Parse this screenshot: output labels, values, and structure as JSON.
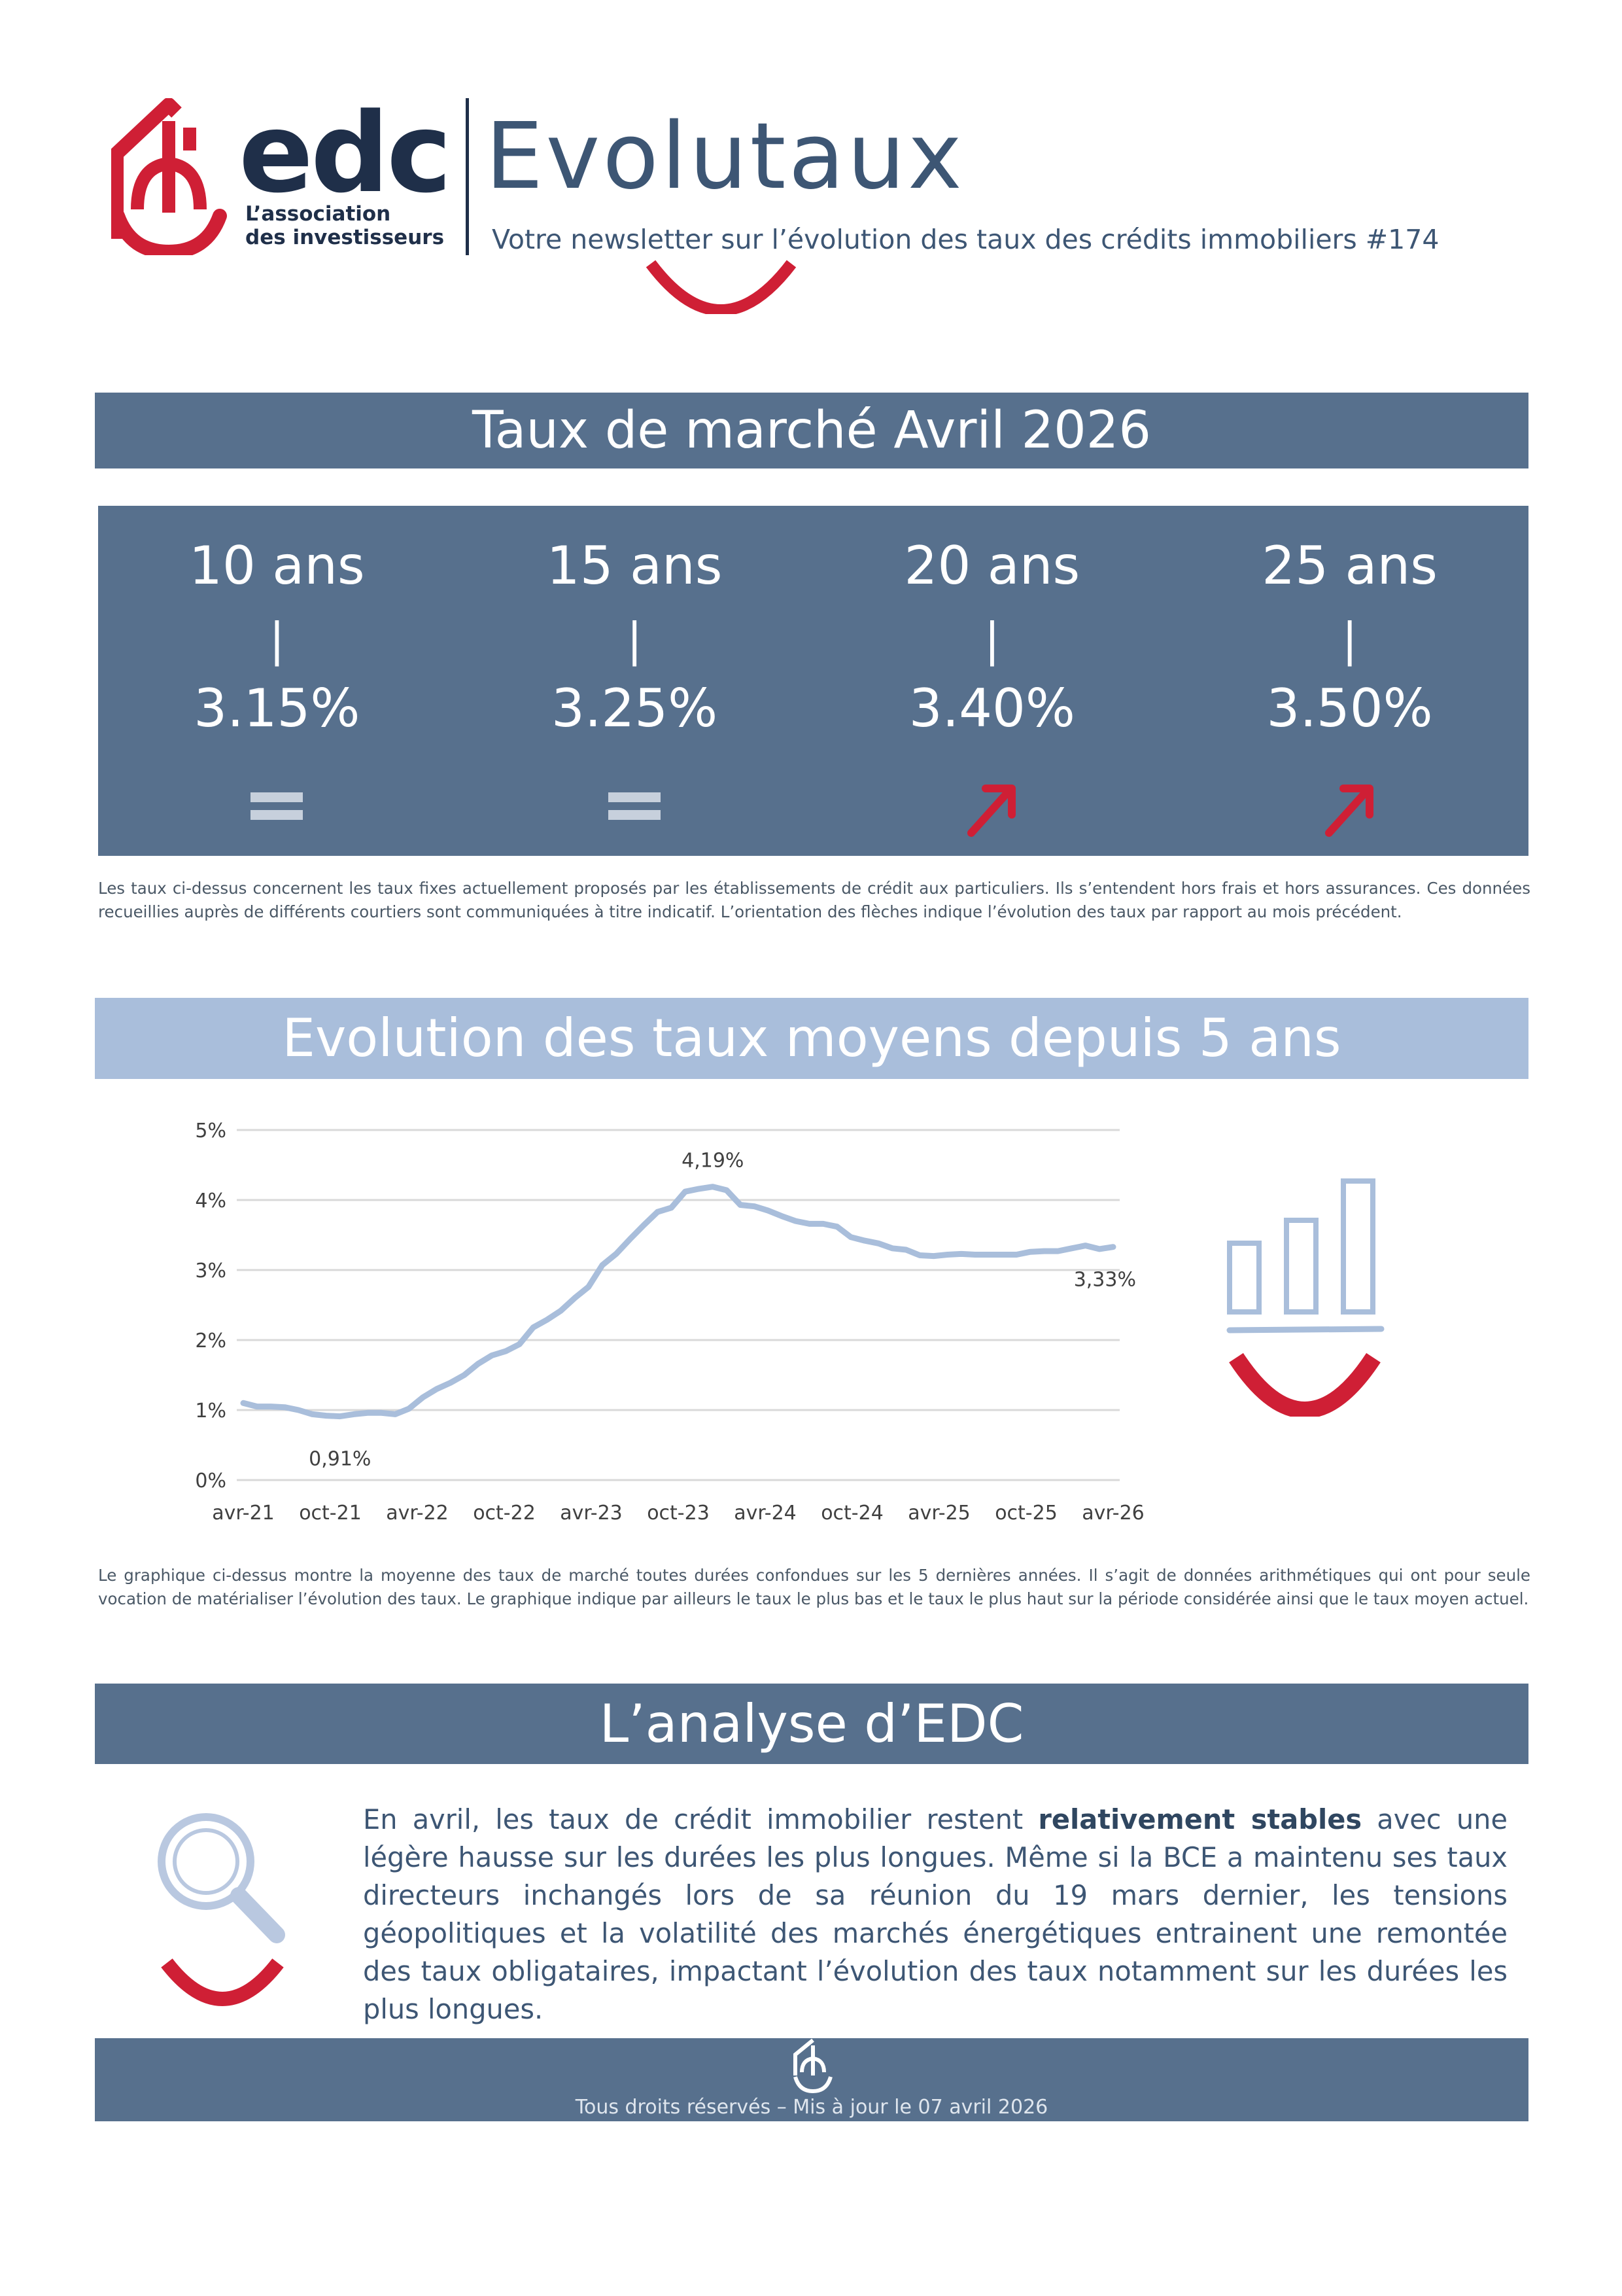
{
  "header": {
    "logo_text": "edc",
    "logo_subtitle": "L’association\ndes investisseurs",
    "title": "Evolutaux",
    "subtitle": "Votre newsletter sur l’évolution des taux des crédits immobiliers #174"
  },
  "market": {
    "heading": "Taux de marché Avril 2026",
    "rates": [
      {
        "term": "10 ans",
        "sep": "|",
        "value": "3.15%",
        "trend": "equal-icon"
      },
      {
        "term": "15 ans",
        "sep": "|",
        "value": "3.25%",
        "trend": "equal-icon"
      },
      {
        "term": "20 ans",
        "sep": "|",
        "value": "3.40%",
        "trend": "arrow-up-right-icon"
      },
      {
        "term": "25 ans",
        "sep": "|",
        "value": "3.50%",
        "trend": "arrow-up-right-icon"
      }
    ],
    "note": "Les taux ci-dessus concernent les taux fixes actuellement proposés par les établissements de crédit aux particuliers. Ils s’entendent hors frais et hors assurances. Ces données recueillies auprès de différents courtiers sont communiquées à titre indicatif. L’orientation des flèches indique l’évolution des taux par rapport au mois précédent."
  },
  "evolution": {
    "heading": "Evolution des taux moyens depuis 5 ans",
    "note": "Le graphique ci-dessus montre la moyenne des taux de marché toutes durées confondues sur les 5 dernières années. Il s’agit de données arithmétiques qui ont pour seule vocation de matérialiser l’évolution des taux. Le graphique indique par ailleurs le taux le plus bas et le taux le plus haut sur la période considérée ainsi que le taux moyen actuel."
  },
  "chart_data": {
    "type": "line",
    "x_ticks": [
      "avr-21",
      "oct-21",
      "avr-22",
      "oct-22",
      "avr-23",
      "oct-23",
      "avr-24",
      "oct-24",
      "avr-25",
      "oct-25",
      "avr-26"
    ],
    "y_ticks": [
      "0%",
      "1%",
      "2%",
      "3%",
      "4%",
      "5%"
    ],
    "ylim": [
      0,
      5
    ],
    "grid": true,
    "line_color": "#a9bedb",
    "series": [
      {
        "values": [
          1.1,
          1.05,
          1.05,
          1.04,
          1.0,
          0.94,
          0.92,
          0.91,
          0.94,
          0.96,
          0.96,
          0.94,
          1.02,
          1.18,
          1.3,
          1.39,
          1.5,
          1.66,
          1.78,
          1.84,
          1.94,
          2.18,
          2.29,
          2.42,
          2.6,
          2.76,
          3.07,
          3.23,
          3.44,
          3.64,
          3.83,
          3.89,
          4.12,
          4.16,
          4.19,
          4.14,
          3.93,
          3.91,
          3.85,
          3.77,
          3.7,
          3.66,
          3.66,
          3.62,
          3.47,
          3.42,
          3.38,
          3.31,
          3.29,
          3.21,
          3.2,
          3.22,
          3.23,
          3.22,
          3.22,
          3.22,
          3.22,
          3.26,
          3.27,
          3.27,
          3.31,
          3.35,
          3.3,
          3.33
        ]
      }
    ],
    "annotations": [
      {
        "label": "0,91%",
        "index": 7
      },
      {
        "label": "4,19%",
        "index": 34
      },
      {
        "label": "3,33%",
        "index": 63
      }
    ]
  },
  "analysis": {
    "heading": "L’analyse d’EDC",
    "text_before": "En avril, les taux de crédit immobilier restent ",
    "text_bold": "relativement stables",
    "text_after": " avec une légère hausse sur les durées les plus longues. Même si la BCE a maintenu ses taux directeurs inchangés lors de sa réunion du 19 mars dernier, les tensions géopolitiques et la volatilité des marchés énergétiques entrainent une remontée des taux obligataires, impactant l’évolution des taux notamment sur les durées les plus longues."
  },
  "footer": {
    "text": "Tous droits réservés – Mis à jour le 07 avril 2026"
  },
  "colors": {
    "brand_red": "#cf1f35",
    "brand_navy": "#1f2f49",
    "slate": "#57708d",
    "light_blue": "#a9bedb"
  }
}
